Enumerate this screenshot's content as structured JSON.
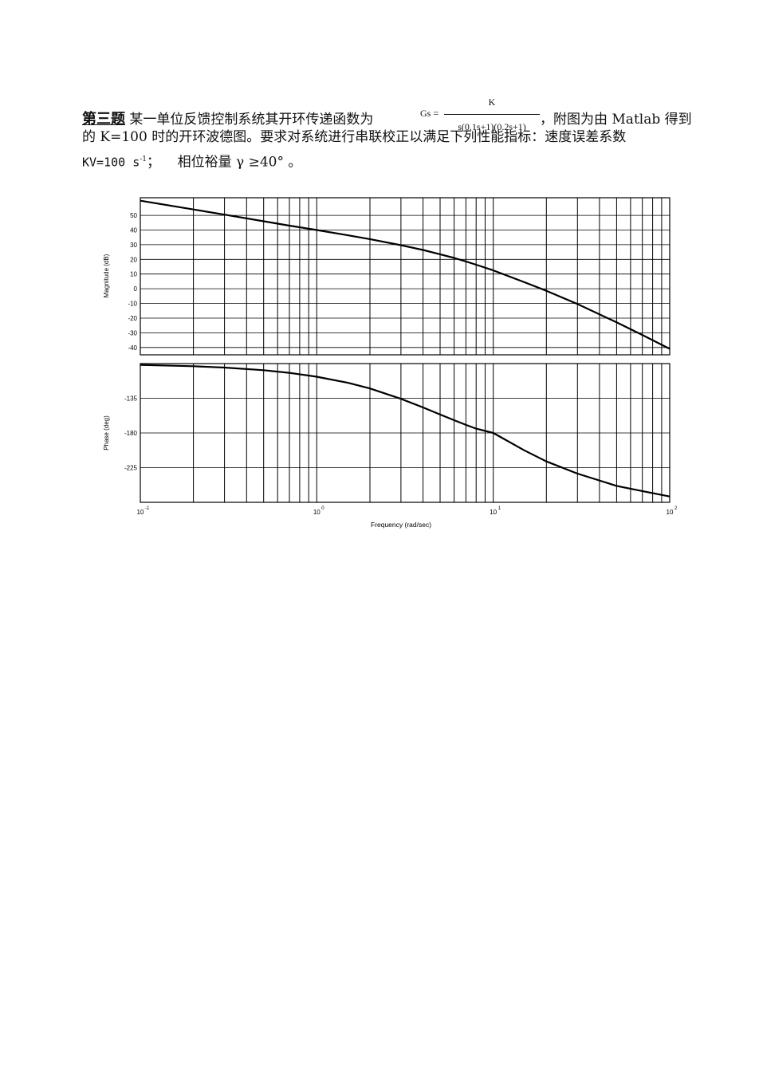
{
  "problem": {
    "title": "第三题",
    "intro": "某一单位反馈控制系统其开环传递函数为",
    "formula": {
      "lhs": "Gs =",
      "numerator": "K",
      "denominator": "s(0.1s+1)(0.2s+1)"
    },
    "after_formula": "，附图为由 Matlab 得到",
    "line2": "的 K=100 时的开环波德图。要求对系统进行串联校正以满足下列性能指标：速度误差系数",
    "kv_text": "KV=100 s",
    "kv_exp": "-1",
    "kv_sep": "；",
    "pm_text": "相位裕量 γ ≥40° 。"
  },
  "chart_data": [
    {
      "type": "line",
      "title": "",
      "xlabel": "Frequency (rad/sec)",
      "ylabel": "Magnitude (dB)",
      "xscale": "log",
      "xlim": [
        0.1,
        100
      ],
      "ylim": [
        -45,
        62
      ],
      "yticks": [
        50,
        40,
        30,
        20,
        10,
        0,
        -10,
        -20,
        -30,
        -40
      ],
      "xtick_labels": [
        "10^-1",
        "10^0",
        "10^1",
        "10^2"
      ],
      "grid": true,
      "series": [
        {
          "x": [
            0.1,
            0.2,
            0.3,
            0.5,
            0.7,
            1,
            1.5,
            2,
            3,
            4,
            5,
            6,
            7,
            8,
            10,
            15,
            20,
            30,
            50,
            70,
            100
          ],
          "y": [
            60,
            54,
            50.5,
            46,
            43,
            40,
            36.4,
            33.8,
            29.7,
            26.4,
            23.5,
            21,
            18.6,
            16.4,
            12.5,
            4.5,
            -1.4,
            -10.4,
            -22.9,
            -31.5,
            -40.9
          ]
        }
      ]
    },
    {
      "type": "line",
      "title": "",
      "xlabel": "Frequency (rad/sec)",
      "ylabel": "Phase (deg)",
      "xscale": "log",
      "xlim": [
        0.1,
        100
      ],
      "ylim": [
        -270,
        -90
      ],
      "yticks": [
        -135,
        -180,
        -225
      ],
      "xtick_labels": [
        "10^-1",
        "10^0",
        "10^1",
        "10^2"
      ],
      "grid": true,
      "series": [
        {
          "x": [
            0.1,
            0.2,
            0.3,
            0.5,
            0.7,
            1,
            1.5,
            2,
            3,
            4,
            5,
            6,
            7,
            8,
            10,
            15,
            20,
            30,
            50,
            70,
            100
          ],
          "y": [
            -91.7,
            -93.4,
            -95.2,
            -98.6,
            -102,
            -107.1,
            -114.9,
            -122.3,
            -135.7,
            -146.9,
            -156.1,
            -163.4,
            -169.5,
            -174.4,
            -180,
            -202.6,
            -216.9,
            -232.8,
            -248.7,
            -255.4,
            -262.4
          ]
        }
      ]
    }
  ]
}
